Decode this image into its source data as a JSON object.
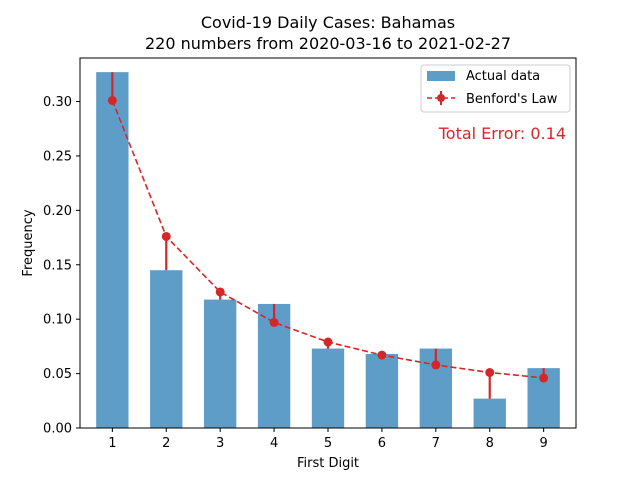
{
  "chart_data": {
    "type": "bar",
    "title": "Covid-19 Daily Cases: Bahamas",
    "subtitle": "220 numbers from 2020-03-16 to 2021-02-27",
    "xlabel": "First Digit",
    "ylabel": "Frequency",
    "categories": [
      "1",
      "2",
      "3",
      "4",
      "5",
      "6",
      "7",
      "8",
      "9"
    ],
    "ylim": [
      0,
      0.34
    ],
    "yticks": [
      0.0,
      0.05,
      0.1,
      0.15,
      0.2,
      0.25,
      0.3
    ],
    "ytick_labels": [
      "0.00",
      "0.05",
      "0.10",
      "0.15",
      "0.20",
      "0.25",
      "0.30"
    ],
    "series": [
      {
        "name": "Actual data",
        "kind": "bar",
        "color": "#5f9dc9",
        "values": [
          0.327,
          0.145,
          0.118,
          0.114,
          0.073,
          0.068,
          0.073,
          0.027,
          0.055
        ]
      },
      {
        "name": "Benford's Law",
        "kind": "line",
        "style": "dashed with markers and error bars",
        "color": "#d62728",
        "values": [
          0.301,
          0.176,
          0.125,
          0.097,
          0.079,
          0.067,
          0.058,
          0.051,
          0.046
        ]
      }
    ],
    "annotation": "Total Error: 0.14",
    "annotation_color": "#d62728",
    "legend": "top-right",
    "grid": false
  }
}
